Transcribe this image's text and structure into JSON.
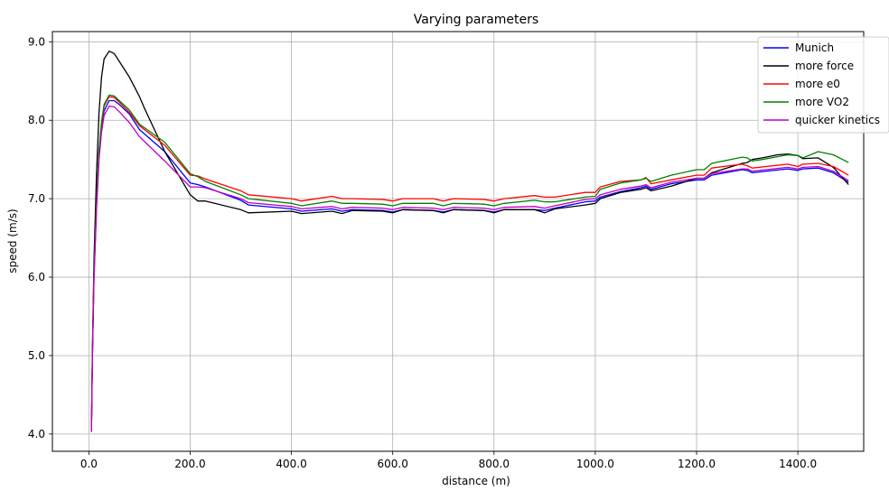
{
  "chart_data": {
    "type": "line",
    "title": "Varying parameters",
    "xlabel": "distance (m)",
    "ylabel": "speed (m/s)",
    "xlim": [
      -72,
      1530
    ],
    "ylim": [
      3.78,
      9.13
    ],
    "xticks": [
      0,
      200,
      400,
      600,
      800,
      1000,
      1200,
      1400
    ],
    "xtick_labels": [
      "0.0",
      "200.0",
      "400.0",
      "600.0",
      "800.0",
      "1000.0",
      "1200.0",
      "1400.0"
    ],
    "yticks": [
      4,
      5,
      6,
      7,
      8,
      9
    ],
    "ytick_labels": [
      "4.0",
      "5.0",
      "6.0",
      "7.0",
      "8.0",
      "9.0"
    ],
    "grid": true,
    "legend_position": "top-right",
    "series": [
      {
        "name": "Munich",
        "color": "#0000ff",
        "x": [
          5,
          7,
          10,
          15,
          20,
          25,
          30,
          40,
          50,
          60,
          80,
          100,
          150,
          200,
          215,
          230,
          300,
          315,
          400,
          420,
          480,
          500,
          520,
          580,
          600,
          620,
          680,
          700,
          720,
          780,
          800,
          820,
          880,
          900,
          920,
          980,
          1000,
          1010,
          1050,
          1090,
          1100,
          1110,
          1150,
          1200,
          1215,
          1230,
          1290,
          1300,
          1310,
          1380,
          1400,
          1410,
          1440,
          1470,
          1500
        ],
        "y": [
          4.03,
          5.0,
          6.0,
          6.9,
          7.55,
          7.9,
          8.12,
          8.25,
          8.25,
          8.2,
          8.08,
          7.88,
          7.6,
          7.2,
          7.18,
          7.15,
          6.98,
          6.92,
          6.87,
          6.84,
          6.87,
          6.84,
          6.86,
          6.85,
          6.83,
          6.86,
          6.85,
          6.83,
          6.86,
          6.85,
          6.83,
          6.86,
          6.86,
          6.85,
          6.88,
          6.96,
          6.97,
          7.02,
          7.09,
          7.14,
          7.16,
          7.12,
          7.19,
          7.24,
          7.24,
          7.3,
          7.37,
          7.36,
          7.33,
          7.38,
          7.36,
          7.38,
          7.39,
          7.33,
          7.21
        ]
      },
      {
        "name": "more force",
        "color": "#000000",
        "x": [
          5,
          7,
          10,
          15,
          20,
          25,
          30,
          40,
          50,
          60,
          80,
          100,
          110,
          150,
          200,
          215,
          230,
          300,
          315,
          400,
          420,
          480,
          500,
          520,
          580,
          600,
          620,
          680,
          700,
          720,
          780,
          800,
          820,
          880,
          900,
          920,
          980,
          1000,
          1010,
          1050,
          1090,
          1100,
          1110,
          1150,
          1200,
          1215,
          1230,
          1290,
          1300,
          1310,
          1330,
          1360,
          1380,
          1400,
          1410,
          1440,
          1470,
          1500
        ],
        "y": [
          4.03,
          5.1,
          6.2,
          7.3,
          8.1,
          8.55,
          8.78,
          8.88,
          8.85,
          8.75,
          8.55,
          8.3,
          8.15,
          7.6,
          7.05,
          6.97,
          6.97,
          6.86,
          6.82,
          6.84,
          6.81,
          6.84,
          6.81,
          6.85,
          6.84,
          6.82,
          6.86,
          6.85,
          6.82,
          6.86,
          6.85,
          6.82,
          6.86,
          6.86,
          6.82,
          6.87,
          6.92,
          6.94,
          7.0,
          7.08,
          7.12,
          7.14,
          7.1,
          7.16,
          7.26,
          7.26,
          7.33,
          7.45,
          7.46,
          7.5,
          7.52,
          7.56,
          7.57,
          7.55,
          7.51,
          7.52,
          7.4,
          7.18
        ]
      },
      {
        "name": "more e0",
        "color": "#ff0000",
        "x": [
          5,
          7,
          10,
          15,
          20,
          25,
          30,
          40,
          50,
          60,
          80,
          100,
          150,
          200,
          215,
          230,
          300,
          315,
          400,
          420,
          480,
          500,
          520,
          580,
          600,
          620,
          680,
          700,
          720,
          780,
          800,
          820,
          880,
          900,
          920,
          980,
          1000,
          1010,
          1050,
          1090,
          1100,
          1110,
          1150,
          1200,
          1215,
          1230,
          1290,
          1300,
          1310,
          1380,
          1400,
          1410,
          1440,
          1470,
          1500
        ],
        "y": [
          4.03,
          5.0,
          6.0,
          6.92,
          7.6,
          7.95,
          8.18,
          8.3,
          8.29,
          8.23,
          8.1,
          7.93,
          7.68,
          7.3,
          7.29,
          7.25,
          7.1,
          7.05,
          7.0,
          6.97,
          7.03,
          7.0,
          7.0,
          6.99,
          6.97,
          7.0,
          7.0,
          6.97,
          7.0,
          6.99,
          6.97,
          7.0,
          7.04,
          7.02,
          7.02,
          7.08,
          7.08,
          7.15,
          7.22,
          7.24,
          7.27,
          7.19,
          7.24,
          7.3,
          7.3,
          7.39,
          7.44,
          7.42,
          7.39,
          7.44,
          7.41,
          7.44,
          7.45,
          7.41,
          7.3
        ]
      },
      {
        "name": "more VO2",
        "color": "#008000",
        "x": [
          5,
          7,
          10,
          15,
          20,
          25,
          30,
          40,
          50,
          60,
          80,
          100,
          150,
          200,
          215,
          230,
          300,
          315,
          400,
          420,
          480,
          500,
          520,
          580,
          600,
          620,
          680,
          700,
          720,
          780,
          800,
          820,
          880,
          900,
          920,
          980,
          1000,
          1010,
          1050,
          1090,
          1100,
          1110,
          1150,
          1200,
          1215,
          1230,
          1290,
          1300,
          1310,
          1330,
          1380,
          1400,
          1410,
          1440,
          1470,
          1500
        ],
        "y": [
          4.03,
          5.0,
          6.05,
          6.95,
          7.62,
          7.98,
          8.2,
          8.32,
          8.31,
          8.25,
          8.13,
          7.95,
          7.72,
          7.32,
          7.28,
          7.22,
          7.05,
          7.0,
          6.94,
          6.91,
          6.97,
          6.94,
          6.94,
          6.93,
          6.91,
          6.94,
          6.94,
          6.91,
          6.94,
          6.93,
          6.91,
          6.94,
          6.98,
          6.96,
          6.96,
          7.02,
          7.03,
          7.12,
          7.2,
          7.24,
          7.26,
          7.22,
          7.3,
          7.37,
          7.37,
          7.45,
          7.53,
          7.52,
          7.48,
          7.5,
          7.56,
          7.55,
          7.52,
          7.6,
          7.56,
          7.46
        ]
      },
      {
        "name": "quicker kinetics",
        "color": "#bf00bf",
        "x": [
          5,
          7,
          10,
          15,
          20,
          25,
          30,
          40,
          50,
          60,
          80,
          100,
          150,
          200,
          215,
          230,
          300,
          315,
          400,
          420,
          480,
          500,
          520,
          580,
          600,
          620,
          680,
          700,
          720,
          780,
          800,
          820,
          880,
          900,
          920,
          980,
          1000,
          1010,
          1050,
          1090,
          1100,
          1110,
          1150,
          1200,
          1215,
          1230,
          1290,
          1300,
          1310,
          1380,
          1400,
          1410,
          1440,
          1470,
          1500
        ],
        "y": [
          4.03,
          4.98,
          5.95,
          6.85,
          7.5,
          7.85,
          8.06,
          8.18,
          8.17,
          8.11,
          7.97,
          7.79,
          7.48,
          7.15,
          7.15,
          7.14,
          7.0,
          6.95,
          6.9,
          6.87,
          6.9,
          6.87,
          6.89,
          6.88,
          6.86,
          6.89,
          6.88,
          6.86,
          6.89,
          6.88,
          6.86,
          6.89,
          6.9,
          6.88,
          6.91,
          6.99,
          7.0,
          7.05,
          7.12,
          7.16,
          7.18,
          7.14,
          7.21,
          7.26,
          7.26,
          7.32,
          7.38,
          7.38,
          7.35,
          7.4,
          7.38,
          7.4,
          7.41,
          7.35,
          7.23
        ]
      }
    ]
  }
}
